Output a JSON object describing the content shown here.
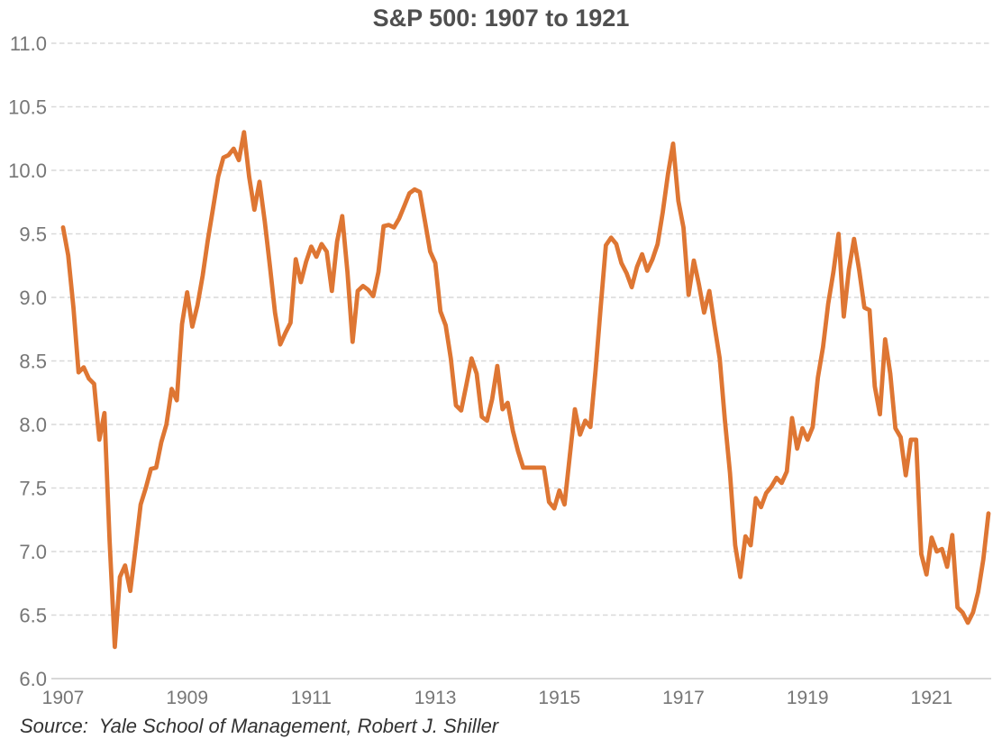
{
  "page": {
    "title": "S&P 500: 1907 to 1921",
    "source_note": "Source:  Yale School of Management, Robert J. Shiller"
  },
  "chart_data": {
    "type": "line",
    "title": "S&P 500: 1907 to 1921",
    "xlabel": "",
    "ylabel": "",
    "ylim": [
      6.0,
      11.0
    ],
    "grid": "horizontal-dashed",
    "legend_position": "none",
    "line_color": "#de7633",
    "frequency": "monthly",
    "x_range": [
      "1907-01",
      "1921-12"
    ],
    "y_tick_values": [
      6.0,
      6.5,
      7.0,
      7.5,
      8.0,
      8.5,
      9.0,
      9.5,
      10.0,
      10.5,
      11.0
    ],
    "y_tick_labels": [
      "6.0",
      "6.5",
      "7.0",
      "7.5",
      "8.0",
      "8.5",
      "9.0",
      "9.5",
      "10.0",
      "10.5",
      "11.0"
    ],
    "x_tick_labels": [
      "1907",
      "1909",
      "1911",
      "1913",
      "1915",
      "1917",
      "1919",
      "1921"
    ],
    "x_tick_month_index": [
      0,
      24,
      48,
      72,
      96,
      120,
      144,
      168
    ],
    "series": [
      {
        "name": "S&P 500 monthly price",
        "values": [
          9.55,
          9.33,
          8.92,
          8.41,
          8.45,
          8.36,
          8.32,
          7.88,
          8.09,
          7.09,
          6.25,
          6.8,
          6.89,
          6.69,
          7.02,
          7.37,
          7.5,
          7.65,
          7.66,
          7.86,
          8.0,
          8.28,
          8.19,
          8.79,
          9.04,
          8.77,
          8.94,
          9.17,
          9.45,
          9.7,
          9.95,
          10.1,
          10.12,
          10.17,
          10.08,
          10.3,
          9.95,
          9.69,
          9.91,
          9.6,
          9.25,
          8.88,
          8.63,
          8.72,
          8.8,
          9.3,
          9.12,
          9.28,
          9.4,
          9.32,
          9.42,
          9.36,
          9.05,
          9.44,
          9.64,
          9.2,
          8.65,
          9.05,
          9.09,
          9.06,
          9.01,
          9.2,
          9.56,
          9.57,
          9.55,
          9.62,
          9.72,
          9.82,
          9.85,
          9.83,
          9.6,
          9.36,
          9.27,
          8.89,
          8.78,
          8.52,
          8.15,
          8.11,
          8.31,
          8.52,
          8.4,
          8.06,
          8.03,
          8.2,
          8.46,
          8.12,
          8.17,
          7.95,
          7.79,
          7.66,
          7.66,
          7.66,
          7.66,
          7.66,
          7.39,
          7.34,
          7.48,
          7.37,
          7.75,
          8.12,
          7.92,
          8.03,
          7.98,
          8.43,
          8.93,
          9.41,
          9.47,
          9.42,
          9.27,
          9.19,
          9.08,
          9.24,
          9.34,
          9.21,
          9.3,
          9.42,
          9.67,
          9.97,
          10.21,
          9.76,
          9.55,
          9.02,
          9.29,
          9.1,
          8.88,
          9.05,
          8.78,
          8.52,
          8.04,
          7.62,
          7.05,
          6.8,
          7.12,
          7.05,
          7.42,
          7.35,
          7.46,
          7.51,
          7.58,
          7.54,
          7.63,
          8.05,
          7.81,
          7.97,
          7.88,
          7.98,
          8.37,
          8.61,
          8.95,
          9.2,
          9.5,
          8.85,
          9.22,
          9.46,
          9.21,
          8.92,
          8.9,
          8.3,
          8.08,
          8.67,
          8.4,
          7.97,
          7.9,
          7.6,
          7.88,
          7.88,
          6.98,
          6.82,
          7.11,
          7.0,
          7.02,
          6.88,
          7.13,
          6.56,
          6.52,
          6.44,
          6.52,
          6.68,
          6.94,
          7.3
        ]
      }
    ],
    "source": "Source:  Yale School of Management, Robert J. Shiller"
  },
  "colors": {
    "line": "#de7633",
    "gridline": "#d9d9d9",
    "axis_line": "#cccccc",
    "tick_text": "#767676",
    "title_text": "#4f4f4f",
    "source_text": "#333333",
    "background": "#ffffff"
  }
}
